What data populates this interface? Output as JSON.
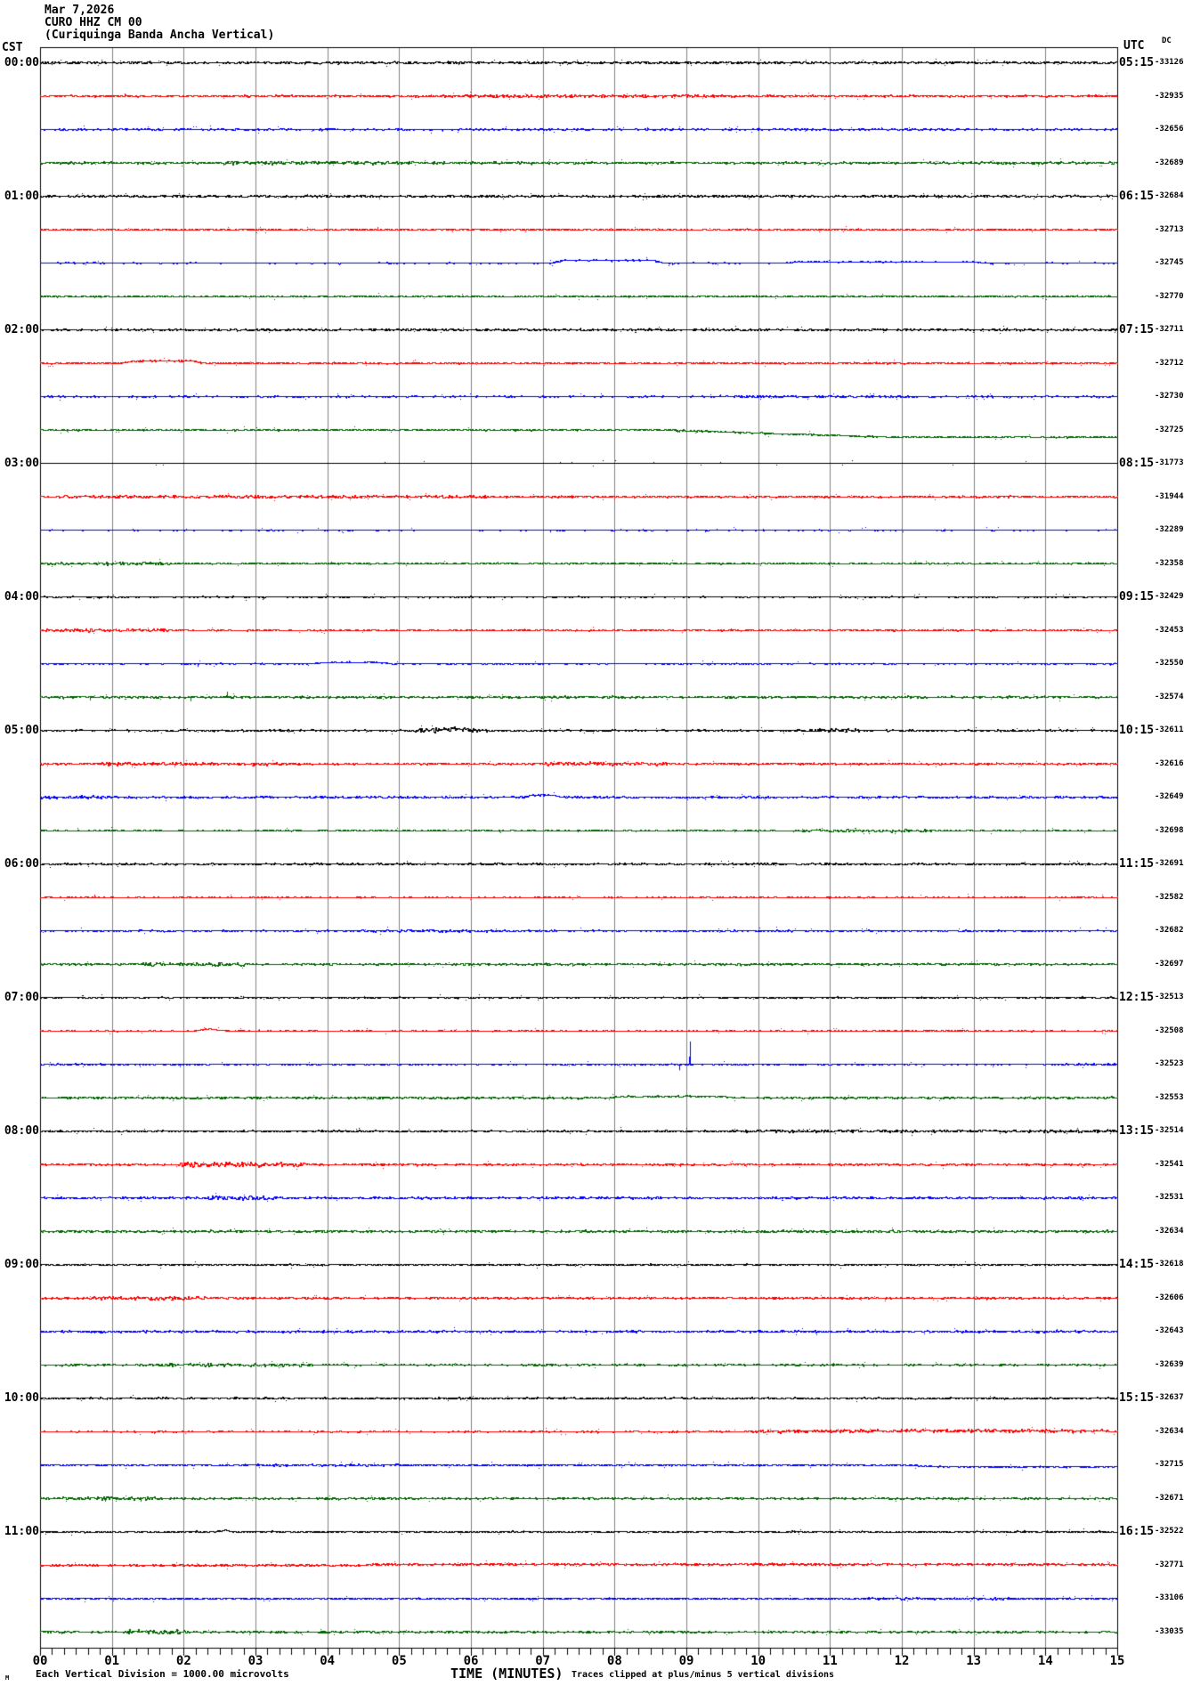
{
  "header": {
    "date": "Mar 7,2026",
    "station": "CURO HHZ CM 00",
    "description": "(Curiquinga Banda Ancha Vertical)"
  },
  "labels": {
    "left_timezone": "CST",
    "right_timezone": "UTC",
    "dc_header": "DC"
  },
  "footer": {
    "corner_glyph": "M",
    "scale_note": "Each Vertical Division = 1000.00 microvolts",
    "x_axis_title": "TIME (MINUTES)",
    "clip_note": "Traces clipped at plus/minus 5 vertical divisions"
  },
  "chart_data": {
    "type": "line",
    "title": "CURO HHZ CM 00 helicorder, Mar 7,2026",
    "xlabel": "TIME (MINUTES)",
    "x_range": [
      0,
      15
    ],
    "x_tick_labels": [
      "00",
      "01",
      "02",
      "03",
      "04",
      "05",
      "06",
      "07",
      "08",
      "09",
      "10",
      "11",
      "12",
      "13",
      "14",
      "15"
    ],
    "minor_ticks_per_minute": 6,
    "grid": "vertical-gray-every-minute",
    "traces_per_hour": 4,
    "minutes_per_trace": 15,
    "palette": {
      "black": "#000000",
      "red": "#ff0000",
      "blue": "#0000ff",
      "green": "#006400",
      "grid": "#808080",
      "frame": "#000000"
    },
    "rows": [
      {
        "cst": "00:00",
        "utc": "05:15",
        "traces": [
          {
            "color": "black",
            "dc": "-33126",
            "noise": 1.0,
            "events": []
          },
          {
            "color": "red",
            "dc": "-32935",
            "noise": 0.8,
            "events": [
              {
                "t": "burst",
                "m0": 5.5,
                "m1": 9.5,
                "a": 0.5
              }
            ]
          },
          {
            "color": "blue",
            "dc": "-32656",
            "noise": 0.7,
            "events": [
              {
                "t": "blip",
                "m": 5.6,
                "h": -2
              }
            ]
          },
          {
            "color": "green",
            "dc": "-32689",
            "noise": 1.0,
            "events": [
              {
                "t": "burst",
                "m0": 2.6,
                "m1": 5.2,
                "a": 0.6
              }
            ]
          }
        ]
      },
      {
        "cst": "01:00",
        "utc": "06:15",
        "traces": [
          {
            "color": "black",
            "dc": "-32684",
            "noise": 1.0,
            "events": []
          },
          {
            "color": "red",
            "dc": "-32713",
            "noise": 0.35,
            "events": [
              {
                "t": "blip",
                "m": 4.7,
                "h": 3
              }
            ]
          },
          {
            "color": "blue",
            "dc": "-32745",
            "noise": 0.5,
            "events": [
              {
                "t": "bump",
                "m0": 7.1,
                "m1": 8.7,
                "h": 3
              },
              {
                "t": "bump",
                "m0": 10.3,
                "m1": 13.2,
                "h": 1.2
              }
            ]
          },
          {
            "color": "green",
            "dc": "-32770",
            "noise": 0.35,
            "events": []
          }
        ]
      },
      {
        "cst": "02:00",
        "utc": "07:15",
        "traces": [
          {
            "color": "black",
            "dc": "-32711",
            "noise": 0.9,
            "events": []
          },
          {
            "color": "red",
            "dc": "-32712",
            "noise": 0.7,
            "events": [
              {
                "t": "bump",
                "m0": 1.1,
                "m1": 2.3,
                "h": 2.5
              }
            ]
          },
          {
            "color": "blue",
            "dc": "-32730",
            "noise": 0.6,
            "events": [
              {
                "t": "burst",
                "m0": 9.5,
                "m1": 12,
                "a": 0.5
              }
            ]
          },
          {
            "color": "green",
            "dc": "-32725",
            "noise": 0.7,
            "events": [
              {
                "t": "step",
                "m0": 8.7,
                "m1": 11.8,
                "dy": 8
              }
            ]
          }
        ]
      },
      {
        "cst": "03:00",
        "utc": "08:15",
        "traces": [
          {
            "color": "black",
            "dc": "-31773",
            "noise": 0.15,
            "events": []
          },
          {
            "color": "red",
            "dc": "-31944",
            "noise": 0.8,
            "events": [
              {
                "t": "burst",
                "m0": 0.3,
                "m1": 6.2,
                "a": 0.5
              }
            ]
          },
          {
            "color": "blue",
            "dc": "-32289",
            "noise": 0.4,
            "events": [
              {
                "t": "blip",
                "m": 7.1,
                "h": -2
              }
            ]
          },
          {
            "color": "green",
            "dc": "-32358",
            "noise": 0.6,
            "events": [
              {
                "t": "burst",
                "m0": 0,
                "m1": 1.8,
                "a": 0.7
              }
            ]
          }
        ]
      },
      {
        "cst": "04:00",
        "utc": "09:15",
        "traces": [
          {
            "color": "black",
            "dc": "-32429",
            "noise": 0.5,
            "events": []
          },
          {
            "color": "red",
            "dc": "-32453",
            "noise": 0.6,
            "events": [
              {
                "t": "burst",
                "m0": 0,
                "m1": 1.8,
                "a": 0.8
              }
            ]
          },
          {
            "color": "blue",
            "dc": "-32550",
            "noise": 0.5,
            "events": [
              {
                "t": "blip",
                "m": 2.2,
                "h": -3
              },
              {
                "t": "bump",
                "m0": 3.8,
                "m1": 4.9,
                "h": 1.5
              }
            ]
          },
          {
            "color": "green",
            "dc": "-32574",
            "noise": 0.9,
            "events": [
              {
                "t": "spike",
                "m": 2.6,
                "h": 6
              },
              {
                "t": "blip",
                "m": 0.7,
                "h": -3
              },
              {
                "t": "blip",
                "m": 2.1,
                "h": -4
              }
            ]
          }
        ]
      },
      {
        "cst": "05:00",
        "utc": "10:15",
        "traces": [
          {
            "color": "black",
            "dc": "-32611",
            "noise": 0.7,
            "events": [
              {
                "t": "burst",
                "m0": 5.2,
                "m1": 6.3,
                "a": 1.2
              },
              {
                "t": "bump",
                "m0": 5.5,
                "m1": 6.0,
                "h": 2
              },
              {
                "t": "burst",
                "m0": 10.7,
                "m1": 11.4,
                "a": 1.0
              }
            ]
          },
          {
            "color": "red",
            "dc": "-32616",
            "noise": 0.8,
            "events": [
              {
                "t": "burst",
                "m0": 0.8,
                "m1": 3.6,
                "a": 0.7
              },
              {
                "t": "burst",
                "m0": 7.0,
                "m1": 8.8,
                "a": 0.8
              }
            ]
          },
          {
            "color": "blue",
            "dc": "-32649",
            "noise": 0.8,
            "events": [
              {
                "t": "bump",
                "m0": 6.7,
                "m1": 7.3,
                "h": 2.5
              },
              {
                "t": "burst",
                "m0": 0,
                "m1": 1.2,
                "a": 0.6
              }
            ]
          },
          {
            "color": "green",
            "dc": "-32698",
            "noise": 0.5,
            "events": [
              {
                "t": "burst",
                "m0": 10.6,
                "m1": 12.4,
                "a": 0.7
              }
            ]
          }
        ]
      },
      {
        "cst": "06:00",
        "utc": "11:15",
        "traces": [
          {
            "color": "black",
            "dc": "-32691",
            "noise": 0.8,
            "events": []
          },
          {
            "color": "red",
            "dc": "-32582",
            "noise": 0.4,
            "events": [
              {
                "t": "blip",
                "m": 0.75,
                "h": 3
              }
            ]
          },
          {
            "color": "blue",
            "dc": "-32682",
            "noise": 0.6,
            "events": [
              {
                "t": "burst",
                "m0": 4.4,
                "m1": 7.2,
                "a": 0.5
              }
            ]
          },
          {
            "color": "green",
            "dc": "-32697",
            "noise": 0.8,
            "events": [
              {
                "t": "burst",
                "m0": 1.4,
                "m1": 2.9,
                "a": 0.9
              }
            ]
          }
        ]
      },
      {
        "cst": "07:00",
        "utc": "12:15",
        "traces": [
          {
            "color": "black",
            "dc": "-32513",
            "noise": 0.6,
            "events": []
          },
          {
            "color": "red",
            "dc": "-32508",
            "noise": 0.5,
            "events": [
              {
                "t": "bump",
                "m0": 2.1,
                "m1": 2.6,
                "h": 2
              }
            ]
          },
          {
            "color": "blue",
            "dc": "-32523",
            "noise": 0.35,
            "events": [
              {
                "t": "blip",
                "m": 8.9,
                "h": -6
              },
              {
                "t": "spike",
                "m": 9.05,
                "h": 25
              },
              {
                "t": "burst",
                "m0": 0,
                "m1": 1.0,
                "a": 0.5
              },
              {
                "t": "burst",
                "m0": 14.2,
                "m1": 15,
                "a": 0.6
              }
            ]
          },
          {
            "color": "green",
            "dc": "-32553",
            "noise": 0.9,
            "events": [
              {
                "t": "bump",
                "m0": 7.9,
                "m1": 9.7,
                "h": 1.5
              }
            ]
          }
        ]
      },
      {
        "cst": "08:00",
        "utc": "13:15",
        "traces": [
          {
            "color": "black",
            "dc": "-32514",
            "noise": 0.7,
            "events": [
              {
                "t": "burst",
                "m0": 9.5,
                "m1": 15,
                "a": 0.5
              }
            ]
          },
          {
            "color": "red",
            "dc": "-32541",
            "noise": 0.8,
            "events": [
              {
                "t": "burst",
                "m0": 1.9,
                "m1": 3.7,
                "a": 1.5
              }
            ]
          },
          {
            "color": "blue",
            "dc": "-32531",
            "noise": 0.9,
            "events": [
              {
                "t": "burst",
                "m0": 2.3,
                "m1": 3.4,
                "a": 1.0
              }
            ]
          },
          {
            "color": "green",
            "dc": "-32634",
            "noise": 1.0,
            "events": []
          }
        ]
      },
      {
        "cst": "09:00",
        "utc": "14:15",
        "traces": [
          {
            "color": "black",
            "dc": "-32618",
            "noise": 0.6,
            "events": []
          },
          {
            "color": "red",
            "dc": "-32606",
            "noise": 0.8,
            "events": [
              {
                "t": "burst",
                "m0": 0.7,
                "m1": 2.3,
                "a": 0.8
              }
            ]
          },
          {
            "color": "blue",
            "dc": "-32643",
            "noise": 0.9,
            "events": []
          },
          {
            "color": "green",
            "dc": "-32639",
            "noise": 0.7,
            "events": [
              {
                "t": "burst",
                "m0": 1.7,
                "m1": 3.8,
                "a": 0.7
              }
            ]
          }
        ]
      },
      {
        "cst": "10:00",
        "utc": "15:15",
        "traces": [
          {
            "color": "black",
            "dc": "-32637",
            "noise": 0.8,
            "events": []
          },
          {
            "color": "red",
            "dc": "-32634",
            "noise": 0.6,
            "events": [
              {
                "t": "burst",
                "m0": 9.8,
                "m1": 15,
                "a": 0.8
              },
              {
                "t": "bump",
                "m0": 10.4,
                "m1": 15,
                "h": 1
              }
            ]
          },
          {
            "color": "blue",
            "dc": "-32715",
            "noise": 0.6,
            "events": [
              {
                "t": "step",
                "m0": 12.0,
                "m1": 12.6,
                "dy": 2
              },
              {
                "t": "burst",
                "m0": 3.0,
                "m1": 5.0,
                "a": 0.4
              }
            ]
          },
          {
            "color": "green",
            "dc": "-32671",
            "noise": 0.8,
            "events": [
              {
                "t": "burst",
                "m0": 0.3,
                "m1": 1.6,
                "a": 0.9
              },
              {
                "t": "blip",
                "m": 0.9,
                "h": -3
              },
              {
                "t": "blip",
                "m": 1.4,
                "h": -3
              }
            ]
          }
        ]
      },
      {
        "cst": "11:00",
        "utc": "16:15",
        "traces": [
          {
            "color": "black",
            "dc": "-32522",
            "noise": 0.7,
            "events": [
              {
                "t": "bump",
                "m0": 2.4,
                "m1": 2.7,
                "h": 2
              }
            ]
          },
          {
            "color": "red",
            "dc": "-32771",
            "noise": 0.9,
            "events": [
              {
                "t": "bump",
                "m0": 4.5,
                "m1": 15,
                "h": 1
              }
            ]
          },
          {
            "color": "blue",
            "dc": "-33106",
            "noise": 0.5,
            "events": [
              {
                "t": "burst",
                "m0": 11.5,
                "m1": 13.5,
                "a": 0.5
              }
            ]
          },
          {
            "color": "green",
            "dc": "-33035",
            "noise": 0.8,
            "events": [
              {
                "t": "burst",
                "m0": 1.2,
                "m1": 2.0,
                "a": 1.2
              }
            ]
          }
        ]
      }
    ]
  }
}
